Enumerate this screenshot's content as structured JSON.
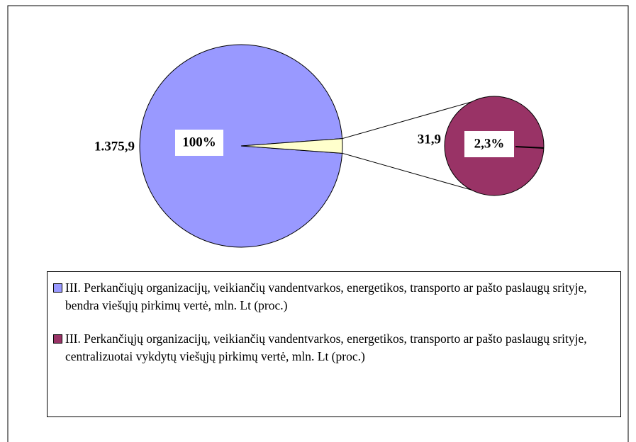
{
  "chart_data": {
    "type": "pie-of-pie",
    "slice_color": "#ffffcc",
    "series": [
      {
        "name": "III. Perkančiųjų organizacijų, veikiančių vandentvarkos, energetikos, transporto ar pašto paslaugų srityje, bendra viešųjų pirkimų vertė, mln. Lt (proc.)",
        "color": "#9999ff",
        "values": [
          1375.9
        ],
        "value_labels": [
          "1.375,9"
        ],
        "percent": [
          100
        ],
        "percent_labels": [
          "100%"
        ]
      },
      {
        "name": "III. Perkančiųjų organizacijų, veikiančių vandentvarkos, energetikos, transporto ar pašto paslaugų srityje, centralizuotai vykdytų viešųjų pirkimų vertė, mln. Lt (proc.)",
        "color": "#993366",
        "values": [
          31.9
        ],
        "value_labels": [
          "31,9"
        ],
        "percent": [
          2.3
        ],
        "percent_labels": [
          "2,3%"
        ]
      }
    ]
  }
}
